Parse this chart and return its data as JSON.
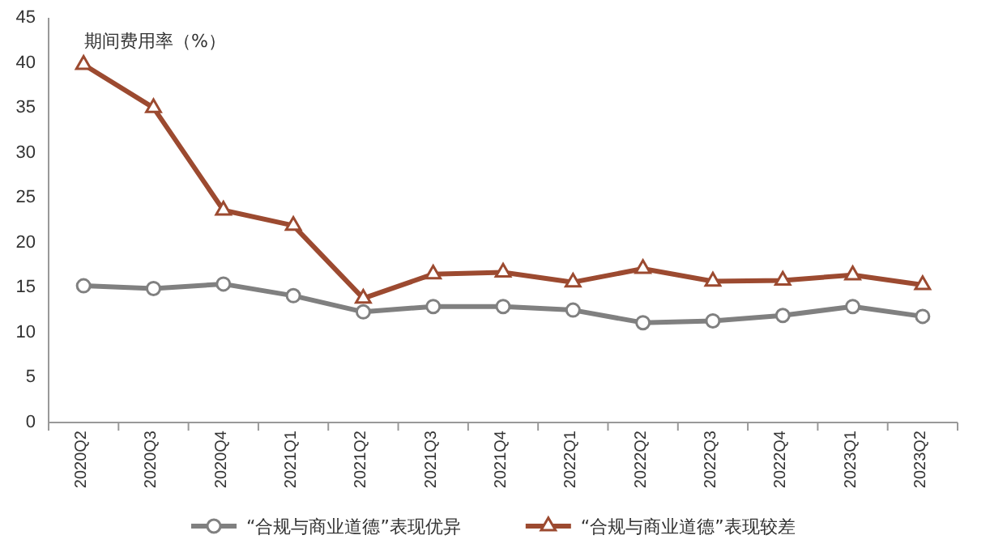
{
  "chart_data": {
    "type": "line",
    "title": "期间费用率（%）",
    "categories": [
      "2020Q2",
      "2020Q3",
      "2020Q4",
      "2021Q1",
      "2021Q2",
      "2021Q3",
      "2021Q4",
      "2022Q1",
      "2022Q2",
      "2022Q3",
      "2022Q4",
      "2023Q1",
      "2023Q2"
    ],
    "series": [
      {
        "name": "“合规与商业道德”表现优异",
        "color": "#808080",
        "marker": "circle",
        "values": [
          15.2,
          14.9,
          15.4,
          14.1,
          12.3,
          12.9,
          12.9,
          12.5,
          11.1,
          11.3,
          11.9,
          12.9,
          11.8
        ]
      },
      {
        "name": "“合规与商业道德”表现较差",
        "color": "#9c4a30",
        "marker": "triangle",
        "values": [
          39.8,
          35.0,
          23.6,
          21.9,
          13.8,
          16.5,
          16.7,
          15.6,
          17.1,
          15.7,
          15.8,
          16.4,
          15.3
        ]
      }
    ],
    "ylim": [
      0,
      45
    ],
    "yticks": [
      0,
      5,
      10,
      15,
      20,
      25,
      30,
      35,
      40,
      45
    ],
    "grid": false,
    "legend": "bottom"
  }
}
